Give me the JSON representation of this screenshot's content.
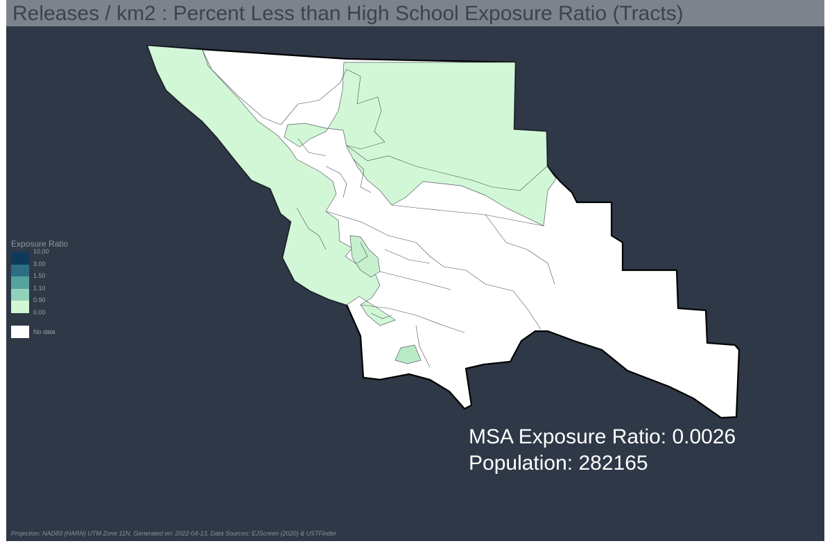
{
  "title": "Releases / km2 : Percent Less than High School Exposure Ratio (Tracts)",
  "legend": {
    "title": "Exposure Ratio",
    "classes": [
      {
        "label": "10.00",
        "color": "#0e3a5a"
      },
      {
        "label": "3.00",
        "color": "#2d6f82"
      },
      {
        "label": "1.50",
        "color": "#55a39e"
      },
      {
        "label": "1.10",
        "color": "#93d2ba"
      },
      {
        "label": "0.90",
        "color": "#d2f7d6"
      },
      {
        "label": "0.00",
        "color": ""
      }
    ],
    "no_data_label": "No data",
    "no_data_color": "#ffffff"
  },
  "map_colors": {
    "background": "#2e3847",
    "no_data_fill": "#ffffff",
    "low_class_fill": "#d2f7d6",
    "light_class_fill": "#b9ebc9",
    "boundary": "#000000"
  },
  "stats": {
    "msa_ratio": "MSA Exposure Ratio: 0.0026",
    "population": "Population: 282165"
  },
  "footer": "Projection: NAD83 (HARN) UTM Zone 11N, Generated on: 2022-04-13, Data Sources: EJScreen (2020) & USTFinder"
}
